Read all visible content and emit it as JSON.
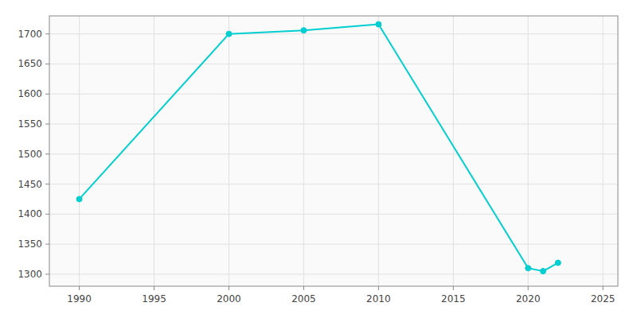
{
  "chart_data": {
    "type": "line",
    "x": [
      1990,
      2000,
      2005,
      2010,
      2020,
      2021,
      2022
    ],
    "values": [
      1425,
      1700,
      1706,
      1716,
      1310,
      1305,
      1319
    ],
    "color": "#00CED1",
    "marker": "circle",
    "xlim": [
      1988,
      2026
    ],
    "ylim": [
      1280,
      1730
    ],
    "xticks": [
      1990,
      1995,
      2000,
      2005,
      2010,
      2015,
      2020,
      2025
    ],
    "yticks": [
      1300,
      1350,
      1400,
      1450,
      1500,
      1550,
      1600,
      1650,
      1700
    ],
    "grid": true
  }
}
